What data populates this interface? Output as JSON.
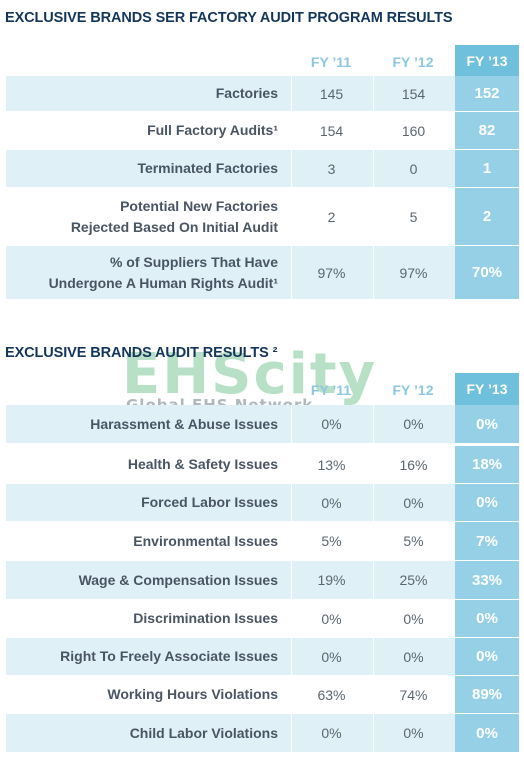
{
  "section1": {
    "title": "EXCLUSIVE BRANDS SER FACTORY AUDIT PROGRAM RESULTS",
    "headers": [
      "FY ’11",
      "FY ’12",
      "FY ’13"
    ],
    "rows": [
      {
        "label": "Factories",
        "fy11": "145",
        "fy12": "154",
        "fy13": "152"
      },
      {
        "label": "Full Factory Audits¹",
        "fy11": "154",
        "fy12": "160",
        "fy13": "82"
      },
      {
        "label": "Terminated Factories",
        "fy11": "3",
        "fy12": "0",
        "fy13": "1"
      },
      {
        "label": "Potential New Factories\nRejected Based On Initial Audit",
        "fy11": "2",
        "fy12": "5",
        "fy13": "2"
      },
      {
        "label": "% of Suppliers That Have\nUndergone A Human Rights Audit¹",
        "fy11": "97%",
        "fy12": "97%",
        "fy13": "70%"
      }
    ]
  },
  "section2": {
    "title": "EXCLUSIVE BRANDS AUDIT RESULTS ²",
    "headers": [
      "FY ’11",
      "FY ’12",
      "FY ’13"
    ],
    "rows": [
      {
        "label": "Harassment & Abuse Issues",
        "fy11": "0%",
        "fy12": "0%",
        "fy13": "0%"
      },
      {
        "label": "Health & Safety Issues",
        "fy11": "13%",
        "fy12": "16%",
        "fy13": "18%"
      },
      {
        "label": "Forced Labor Issues",
        "fy11": "0%",
        "fy12": "0%",
        "fy13": "0%"
      },
      {
        "label": "Environmental Issues",
        "fy11": "5%",
        "fy12": "5%",
        "fy13": "7%"
      },
      {
        "label": "Wage & Compensation Issues",
        "fy11": "19%",
        "fy12": "25%",
        "fy13": "33%"
      },
      {
        "label": "Discrimination Issues",
        "fy11": "0%",
        "fy12": "0%",
        "fy13": "0%"
      },
      {
        "label": "Right To Freely Associate Issues",
        "fy11": "0%",
        "fy12": "0%",
        "fy13": "0%"
      },
      {
        "label": "Working Hours Violations",
        "fy11": "63%",
        "fy12": "74%",
        "fy13": "89%"
      },
      {
        "label": "Child Labor Violations",
        "fy11": "0%",
        "fy12": "0%",
        "fy13": "0%"
      }
    ]
  },
  "watermark": {
    "title": "EHScity",
    "subtitle": "Global EHS Network"
  }
}
